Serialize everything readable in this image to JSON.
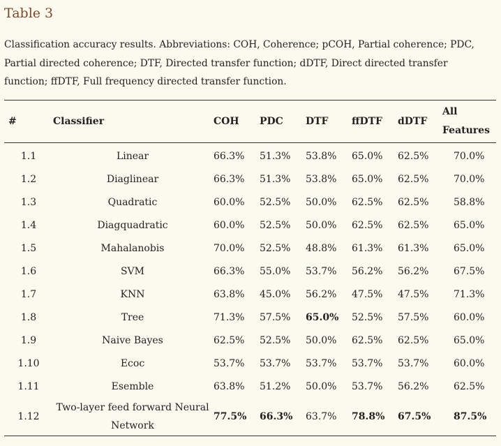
{
  "title": "Table 3",
  "caption": "Classification accuracy results. Abbreviations: COH, Coherence; pCOH, Partial coherence; PDC, Partial directed coherence; DTF, Directed transfer function; dDTF, Direct directed transfer function; ffDTF, Full frequency directed transfer function.",
  "headers": {
    "num": "#",
    "classifier": "Classifier",
    "coh": "COH",
    "pdc": "PDC",
    "dtf": "DTF",
    "ffdtf": "ffDTF",
    "ddtf": "dDTF",
    "all_line1": "All",
    "all_line2": "Features"
  },
  "rows": [
    {
      "num": "1.1",
      "classifier": "Linear",
      "coh": "66.3%",
      "pdc": "51.3%",
      "dtf": "53.8%",
      "ffdtf": "65.0%",
      "ddtf": "62.5%",
      "all": "70.0%"
    },
    {
      "num": "1.2",
      "classifier": "Diaglinear",
      "coh": "66.3%",
      "pdc": "51.3%",
      "dtf": "53.8%",
      "ffdtf": "65.0%",
      "ddtf": "62.5%",
      "all": "70.0%"
    },
    {
      "num": "1.3",
      "classifier": "Quadratic",
      "coh": "60.0%",
      "pdc": "52.5%",
      "dtf": "50.0%",
      "ffdtf": "62.5%",
      "ddtf": "62.5%",
      "all": "58.8%"
    },
    {
      "num": "1.4",
      "classifier": "Diagquadratic",
      "coh": "60.0%",
      "pdc": "52.5%",
      "dtf": "50.0%",
      "ffdtf": "62.5%",
      "ddtf": "62.5%",
      "all": "65.0%"
    },
    {
      "num": "1.5",
      "classifier": "Mahalanobis",
      "coh": "70.0%",
      "pdc": "52.5%",
      "dtf": "48.8%",
      "ffdtf": "61.3%",
      "ddtf": "61.3%",
      "all": "65.0%"
    },
    {
      "num": "1.6",
      "classifier": "SVM",
      "coh": "66.3%",
      "pdc": "55.0%",
      "dtf": "53.7%",
      "ffdtf": "56.2%",
      "ddtf": "56.2%",
      "all": "67.5%"
    },
    {
      "num": "1.7",
      "classifier": "KNN",
      "coh": "63.8%",
      "pdc": "45.0%",
      "dtf": "56.2%",
      "ffdtf": "47.5%",
      "ddtf": "47.5%",
      "all": "71.3%"
    },
    {
      "num": "1.8",
      "classifier": "Tree",
      "coh": "71.3%",
      "pdc": "57.5%",
      "dtf": "65.0%",
      "ffdtf": "52.5%",
      "ddtf": "57.5%",
      "all": "60.0%"
    },
    {
      "num": "1.9",
      "classifier": "Naive Bayes",
      "coh": "62.5%",
      "pdc": "52.5%",
      "dtf": "50.0%",
      "ffdtf": "62.5%",
      "ddtf": "62.5%",
      "all": "65.0%"
    },
    {
      "num": "1.10",
      "classifier": "Ecoc",
      "coh": "53.7%",
      "pdc": "53.7%",
      "dtf": "53.7%",
      "ffdtf": "53.7%",
      "ddtf": "53.7%",
      "all": "60.0%"
    },
    {
      "num": "1.11",
      "classifier": "Esemble",
      "coh": "63.8%",
      "pdc": "51.2%",
      "dtf": "50.0%",
      "ffdtf": "53.7%",
      "ddtf": "56.2%",
      "all": "62.5%"
    },
    {
      "num": "1.12",
      "classifier_line1": "Two-layer feed forward Neural",
      "classifier_line2": "Network",
      "coh": "77.5%",
      "pdc": "66.3%",
      "dtf": "63.7%",
      "ffdtf": "78.8%",
      "ddtf": "67.5%",
      "all": "87.5%"
    }
  ]
}
